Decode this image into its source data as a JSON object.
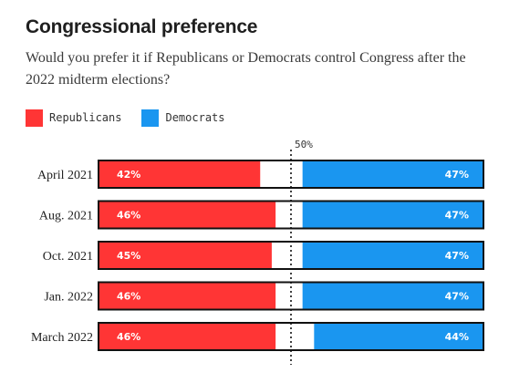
{
  "header": {
    "title": "Congressional preference",
    "subtitle": "Would you prefer it if Republicans or Democrats control Congress after the 2022 midterm elections?"
  },
  "legend": [
    {
      "label": "Republicans",
      "color": "#ff3535"
    },
    {
      "label": "Democrats",
      "color": "#1a96f0"
    }
  ],
  "chart_data": {
    "type": "bar",
    "orientation": "horizontal-stacked",
    "xlim": [
      0,
      100
    ],
    "reference_line": {
      "value": 50,
      "label": "50%"
    },
    "categories": [
      "April 2021",
      "Aug. 2021",
      "Oct. 2021",
      "Jan. 2022",
      "March 2022"
    ],
    "series": [
      {
        "name": "Republicans",
        "color": "#ff3535",
        "values": [
          42,
          46,
          45,
          46,
          46
        ],
        "labels": [
          "42%",
          "46%",
          "45%",
          "46%",
          "46%"
        ]
      },
      {
        "name": "Democrats",
        "color": "#1a96f0",
        "values": [
          47,
          47,
          47,
          47,
          44
        ],
        "labels": [
          "47%",
          "47%",
          "47%",
          "47%",
          "44%"
        ]
      }
    ]
  }
}
